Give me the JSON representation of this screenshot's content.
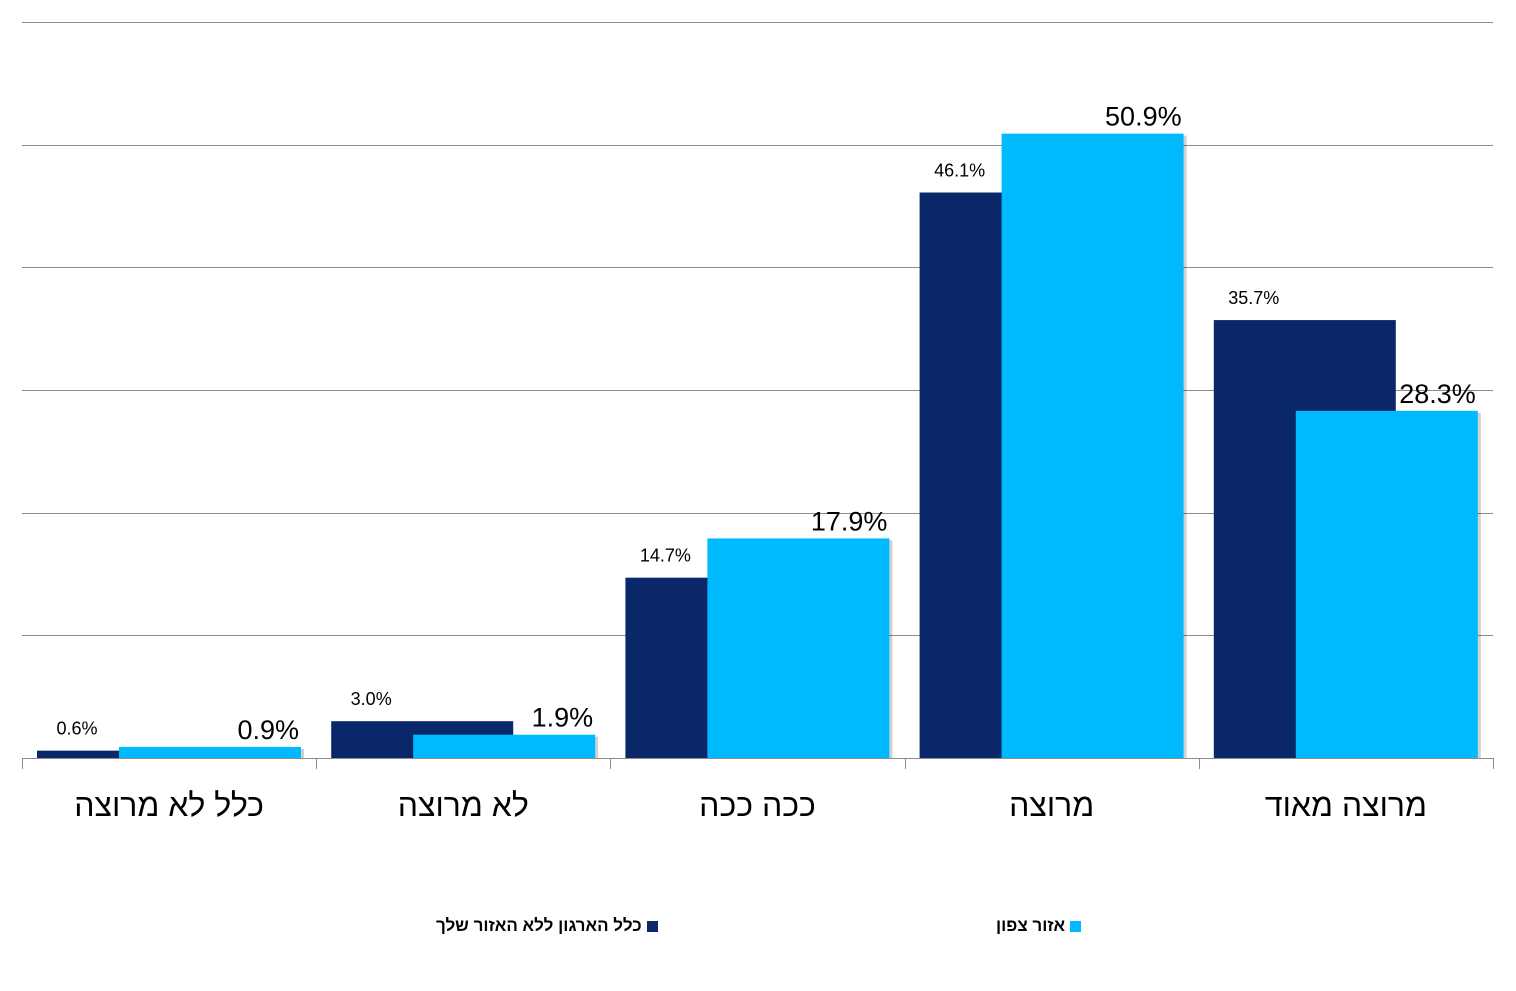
{
  "chart_data": {
    "type": "bar",
    "categories": [
      "כלל לא מרוצה",
      "לא מרוצה",
      "ככה ככה",
      "מרוצה",
      "מרוצה מאוד"
    ],
    "series": [
      {
        "name": "כלל הארגון ללא האזור שלך",
        "color": "#0A2869",
        "values": [
          0.6,
          3.0,
          14.7,
          46.1,
          35.7
        ],
        "labels": [
          "0.6%",
          "3.0%",
          "14.7%",
          "46.1%",
          "35.7%"
        ]
      },
      {
        "name": "אזור צפון",
        "color": "#00BAFF",
        "values": [
          0.9,
          1.9,
          17.9,
          50.9,
          28.3
        ],
        "labels": [
          "0.9%",
          "1.9%",
          "17.9%",
          "50.9%",
          "28.3%"
        ]
      }
    ],
    "ylim": [
      0,
      60
    ],
    "yticks": [
      0,
      10,
      20,
      30,
      40,
      50,
      60
    ],
    "ytick_labels_visible": false,
    "grid": true,
    "legend_position": "bottom"
  }
}
